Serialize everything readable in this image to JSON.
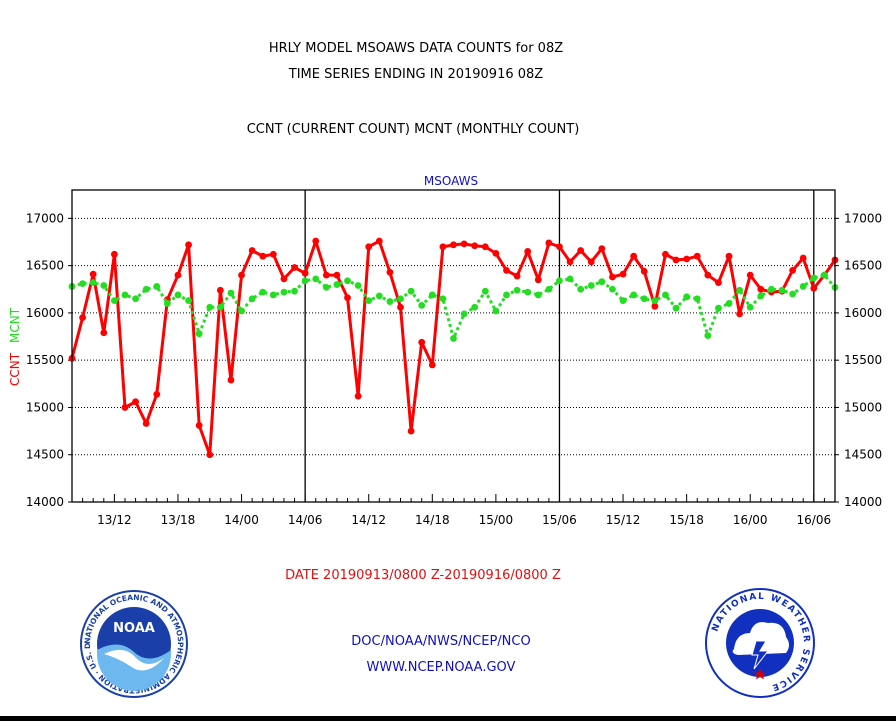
{
  "titles": {
    "line1": "HRLY MODEL MSOAWS DATA COUNTS for 08Z",
    "line2": "TIME SERIES ENDING IN 20190916 08Z",
    "line3": "CCNT (CURRENT COUNT) MCNT (MONTHLY COUNT)"
  },
  "chart_data": {
    "type": "line",
    "title": "MSOAWS",
    "ylabel_series1": "CCNT",
    "ylabel_series2": "MCNT",
    "xlabel": "DATE 20190913/0800 Z-20190916/0800 Z",
    "ylim": [
      14000,
      17300
    ],
    "yticks": [
      14000,
      14500,
      15000,
      15500,
      16000,
      16500,
      17000
    ],
    "x_range_hours": [
      0,
      72
    ],
    "xtick_labels": [
      "13/12",
      "13/18",
      "14/00",
      "14/06",
      "14/12",
      "14/18",
      "15/00",
      "15/06",
      "15/12",
      "15/18",
      "16/00",
      "16/06"
    ],
    "xtick_hours": [
      4,
      10,
      16,
      22,
      28,
      34,
      40,
      46,
      52,
      58,
      64,
      70
    ],
    "day_boundaries_hours": [
      22,
      46,
      70
    ],
    "grid": "horizontal dotted",
    "series": [
      {
        "name": "CCNT",
        "color": "#ff0000",
        "style": "solid",
        "values": [
          15520,
          15950,
          16410,
          15790,
          16620,
          15000,
          15060,
          14830,
          15140,
          16140,
          16400,
          16720,
          14810,
          14500,
          16240,
          15290,
          16400,
          16660,
          16600,
          16620,
          16360,
          16480,
          16420,
          16760,
          16400,
          16400,
          16160,
          15120,
          16700,
          16760,
          16430,
          16060,
          14750,
          15690,
          15450,
          16700,
          16720,
          16730,
          16710,
          16700,
          16630,
          16450,
          16390,
          16650,
          16350,
          16740,
          16700,
          16540,
          16660,
          16540,
          16680,
          16380,
          16410,
          16600,
          16440,
          16070,
          16620,
          16560,
          16570,
          16600,
          16400,
          16320,
          16600,
          15990,
          16400,
          16250,
          16220,
          16230,
          16450,
          16580,
          16260,
          16400,
          16560
        ]
      },
      {
        "name": "MCNT",
        "color": "#22dd22",
        "style": "dotted",
        "values": [
          16280,
          16310,
          16320,
          16290,
          16130,
          16190,
          16150,
          16250,
          16280,
          16100,
          16190,
          16130,
          15780,
          16060,
          16060,
          16210,
          16020,
          16150,
          16220,
          16190,
          16220,
          16230,
          16340,
          16360,
          16270,
          16300,
          16340,
          16290,
          16130,
          16180,
          16120,
          16150,
          16230,
          16080,
          16190,
          16150,
          15730,
          15990,
          16060,
          16230,
          16020,
          16190,
          16240,
          16220,
          16190,
          16250,
          16340,
          16360,
          16250,
          16290,
          16330,
          16250,
          16130,
          16190,
          16150,
          16130,
          16190,
          16050,
          16170,
          16150,
          15760,
          16050,
          16100,
          16240,
          16060,
          16180,
          16250,
          16240,
          16200,
          16280,
          16370,
          16400,
          16270
        ]
      }
    ]
  },
  "footer": {
    "line1": "DOC/NOAA/NWS/NCEP/NCO",
    "line2": "WWW.NCEP.NOAA.GOV"
  },
  "logos": {
    "noaa": {
      "center_text": "NOAA",
      "ring_text": "NATIONAL OCEANIC AND ATMOSPHERIC ADMINISTRATION · U.S. DEPARTMENT OF COMMERCE",
      "colors": {
        "blue": "#1a3fa8",
        "light": "#6db8ee"
      }
    },
    "nws": {
      "ring_text": "NATIONAL WEATHER SERVICE",
      "colors": {
        "blue": "#1230c0",
        "red": "#d40000"
      }
    }
  }
}
